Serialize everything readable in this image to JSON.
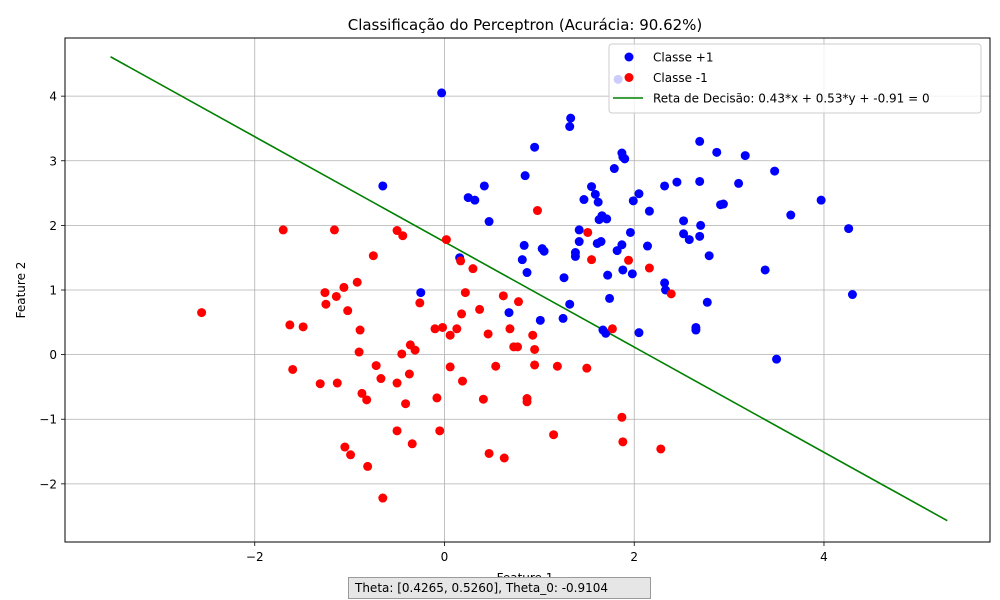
{
  "chart_data": {
    "type": "scatter",
    "title": "Classificação do Perceptron (Acurácia: 90.62%)",
    "xlabel": "Feature 1",
    "ylabel": "Feature 2",
    "xlim": [
      -4.0,
      5.75
    ],
    "ylim": [
      -2.9,
      4.9
    ],
    "xticks": [
      -2,
      0,
      2,
      4
    ],
    "xtick_labels": [
      "−2",
      "0",
      "2",
      "4"
    ],
    "yticks": [
      -2,
      -1,
      0,
      1,
      2,
      3,
      4
    ],
    "ytick_labels": [
      "−2",
      "−1",
      "0",
      "1",
      "2",
      "3",
      "4"
    ],
    "grid": true,
    "legend_position": "top-right",
    "series": [
      {
        "name": "Classe +1",
        "kind": "scatter",
        "color": "#0000ff",
        "points": [
          [
            -0.03,
            4.05
          ],
          [
            1.33,
            3.66
          ],
          [
            1.32,
            3.53
          ],
          [
            0.95,
            3.21
          ],
          [
            1.83,
            4.26
          ],
          [
            2.69,
            3.3
          ],
          [
            2.87,
            3.13
          ],
          [
            1.87,
            3.12
          ],
          [
            1.88,
            3.06
          ],
          [
            1.9,
            3.03
          ],
          [
            3.17,
            3.08
          ],
          [
            -0.65,
            2.61
          ],
          [
            0.42,
            2.61
          ],
          [
            0.85,
            2.77
          ],
          [
            1.79,
            2.88
          ],
          [
            2.05,
            2.49
          ],
          [
            2.32,
            2.61
          ],
          [
            2.45,
            2.67
          ],
          [
            2.69,
            2.68
          ],
          [
            3.1,
            2.65
          ],
          [
            3.48,
            2.84
          ],
          [
            0.25,
            2.43
          ],
          [
            0.32,
            2.39
          ],
          [
            1.47,
            2.4
          ],
          [
            1.55,
            2.6
          ],
          [
            1.59,
            2.48
          ],
          [
            1.62,
            2.36
          ],
          [
            1.99,
            2.38
          ],
          [
            2.16,
            2.22
          ],
          [
            2.91,
            2.32
          ],
          [
            2.94,
            2.33
          ],
          [
            3.97,
            2.39
          ],
          [
            0.47,
            2.06
          ],
          [
            1.63,
            2.09
          ],
          [
            1.66,
            2.15
          ],
          [
            1.71,
            2.1
          ],
          [
            2.52,
            2.07
          ],
          [
            2.7,
            2.0
          ],
          [
            3.65,
            2.16
          ],
          [
            4.26,
            1.95
          ],
          [
            1.42,
            1.93
          ],
          [
            1.42,
            1.75
          ],
          [
            1.61,
            1.72
          ],
          [
            1.65,
            1.75
          ],
          [
            1.87,
            1.7
          ],
          [
            1.96,
            1.89
          ],
          [
            2.52,
            1.87
          ],
          [
            2.58,
            1.78
          ],
          [
            2.69,
            1.83
          ],
          [
            0.84,
            1.69
          ],
          [
            1.03,
            1.64
          ],
          [
            1.05,
            1.6
          ],
          [
            1.38,
            1.58
          ],
          [
            1.38,
            1.52
          ],
          [
            1.82,
            1.61
          ],
          [
            2.14,
            1.68
          ],
          [
            2.79,
            1.53
          ],
          [
            0.16,
            1.5
          ],
          [
            0.82,
            1.47
          ],
          [
            0.87,
            1.27
          ],
          [
            1.26,
            1.19
          ],
          [
            1.72,
            1.23
          ],
          [
            1.88,
            1.31
          ],
          [
            1.98,
            1.25
          ],
          [
            2.32,
            1.11
          ],
          [
            2.33,
            1.0
          ],
          [
            3.38,
            1.31
          ],
          [
            -0.25,
            0.96
          ],
          [
            1.32,
            0.78
          ],
          [
            1.74,
            0.87
          ],
          [
            2.77,
            0.81
          ],
          [
            4.3,
            0.93
          ],
          [
            0.68,
            0.65
          ],
          [
            1.01,
            0.53
          ],
          [
            1.25,
            0.56
          ],
          [
            1.67,
            0.38
          ],
          [
            1.7,
            0.33
          ],
          [
            2.05,
            0.34
          ],
          [
            2.65,
            0.38
          ],
          [
            2.65,
            0.42
          ],
          [
            3.5,
            -0.07
          ]
        ]
      },
      {
        "name": "Classe -1",
        "kind": "scatter",
        "color": "#ff0000",
        "points": [
          [
            -1.7,
            1.93
          ],
          [
            -1.16,
            1.93
          ],
          [
            -0.5,
            1.92
          ],
          [
            -0.44,
            1.84
          ],
          [
            0.02,
            1.78
          ],
          [
            -0.75,
            1.53
          ],
          [
            0.17,
            1.45
          ],
          [
            0.3,
            1.33
          ],
          [
            0.98,
            2.23
          ],
          [
            1.51,
            1.89
          ],
          [
            1.55,
            1.47
          ],
          [
            1.94,
            1.46
          ],
          [
            2.16,
            1.34
          ],
          [
            -0.92,
            1.12
          ],
          [
            -1.06,
            1.04
          ],
          [
            -1.26,
            0.96
          ],
          [
            -1.14,
            0.9
          ],
          [
            0.22,
            0.96
          ],
          [
            0.62,
            0.91
          ],
          [
            0.78,
            0.82
          ],
          [
            2.39,
            0.94
          ],
          [
            -1.25,
            0.78
          ],
          [
            -1.02,
            0.68
          ],
          [
            -0.26,
            0.8
          ],
          [
            0.18,
            0.63
          ],
          [
            0.37,
            0.7
          ],
          [
            -2.56,
            0.65
          ],
          [
            -1.63,
            0.46
          ],
          [
            -1.49,
            0.43
          ],
          [
            -0.89,
            0.38
          ],
          [
            -0.1,
            0.4
          ],
          [
            -0.02,
            0.42
          ],
          [
            0.13,
            0.4
          ],
          [
            0.06,
            0.3
          ],
          [
            0.46,
            0.32
          ],
          [
            0.69,
            0.4
          ],
          [
            0.93,
            0.3
          ],
          [
            1.77,
            0.4
          ],
          [
            -0.36,
            0.15
          ],
          [
            -0.31,
            0.07
          ],
          [
            -0.45,
            0.01
          ],
          [
            -0.9,
            0.04
          ],
          [
            0.73,
            0.12
          ],
          [
            0.77,
            0.12
          ],
          [
            0.95,
            0.08
          ],
          [
            -1.6,
            -0.23
          ],
          [
            -0.67,
            -0.37
          ],
          [
            -0.72,
            -0.17
          ],
          [
            0.06,
            -0.19
          ],
          [
            0.54,
            -0.18
          ],
          [
            0.95,
            -0.16
          ],
          [
            1.19,
            -0.18
          ],
          [
            1.5,
            -0.21
          ],
          [
            -1.31,
            -0.45
          ],
          [
            -1.13,
            -0.44
          ],
          [
            -0.5,
            -0.44
          ],
          [
            -0.37,
            -0.3
          ],
          [
            0.19,
            -0.41
          ],
          [
            -0.87,
            -0.6
          ],
          [
            -0.82,
            -0.7
          ],
          [
            -0.41,
            -0.76
          ],
          [
            -0.08,
            -0.67
          ],
          [
            0.41,
            -0.69
          ],
          [
            0.87,
            -0.68
          ],
          [
            0.87,
            -0.73
          ],
          [
            -0.5,
            -1.18
          ],
          [
            -0.34,
            -1.38
          ],
          [
            -0.05,
            -1.18
          ],
          [
            1.87,
            -0.97
          ],
          [
            1.15,
            -1.24
          ],
          [
            -1.05,
            -1.43
          ],
          [
            -0.99,
            -1.55
          ],
          [
            0.47,
            -1.53
          ],
          [
            0.63,
            -1.6
          ],
          [
            1.88,
            -1.35
          ],
          [
            2.28,
            -1.46
          ],
          [
            -0.81,
            -1.73
          ],
          [
            -0.65,
            -2.22
          ]
        ]
      },
      {
        "name": "Reta de Decisão: 0.43*x + 0.53*y + -0.91 = 0",
        "kind": "line",
        "color": "#008000",
        "x": [
          -3.52,
          5.3
        ],
        "y": [
          4.61,
          -2.57
        ]
      }
    ]
  },
  "footer": {
    "text": "Theta: [0.4265, 0.5260], Theta_0: -0.9104"
  }
}
